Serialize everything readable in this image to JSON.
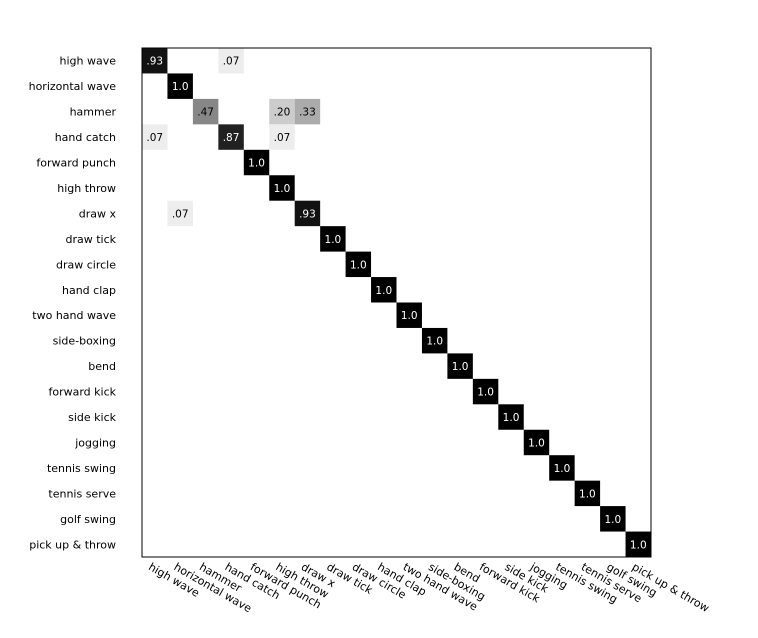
{
  "chart_data": {
    "type": "heatmap",
    "title": "",
    "xlabel": "",
    "ylabel": "",
    "colormap": "gray_r",
    "labels": [
      "high wave",
      "horizontal wave",
      "hammer",
      "hand catch",
      "forward punch",
      "high throw",
      "draw x",
      "draw tick",
      "draw circle",
      "hand clap",
      "two hand wave",
      "side-boxing",
      "bend",
      "forward kick",
      "side kick",
      "jogging",
      "tennis swing",
      "tennis serve",
      "golf swing",
      "pick up & throw"
    ],
    "cells": [
      {
        "row": 0,
        "col": 0,
        "value": 0.93,
        "label": ".93"
      },
      {
        "row": 0,
        "col": 3,
        "value": 0.07,
        "label": ".07"
      },
      {
        "row": 1,
        "col": 1,
        "value": 1.0,
        "label": "1.0"
      },
      {
        "row": 2,
        "col": 2,
        "value": 0.47,
        "label": ".47"
      },
      {
        "row": 2,
        "col": 5,
        "value": 0.2,
        "label": ".20"
      },
      {
        "row": 2,
        "col": 6,
        "value": 0.33,
        "label": ".33"
      },
      {
        "row": 3,
        "col": 0,
        "value": 0.07,
        "label": ".07"
      },
      {
        "row": 3,
        "col": 3,
        "value": 0.87,
        "label": ".87"
      },
      {
        "row": 3,
        "col": 5,
        "value": 0.07,
        "label": ".07"
      },
      {
        "row": 4,
        "col": 4,
        "value": 1.0,
        "label": "1.0"
      },
      {
        "row": 5,
        "col": 5,
        "value": 1.0,
        "label": "1.0"
      },
      {
        "row": 6,
        "col": 1,
        "value": 0.07,
        "label": ".07"
      },
      {
        "row": 6,
        "col": 6,
        "value": 0.93,
        "label": ".93"
      },
      {
        "row": 7,
        "col": 7,
        "value": 1.0,
        "label": "1.0"
      },
      {
        "row": 8,
        "col": 8,
        "value": 1.0,
        "label": "1.0"
      },
      {
        "row": 9,
        "col": 9,
        "value": 1.0,
        "label": "1.0"
      },
      {
        "row": 10,
        "col": 10,
        "value": 1.0,
        "label": "1.0"
      },
      {
        "row": 11,
        "col": 11,
        "value": 1.0,
        "label": "1.0"
      },
      {
        "row": 12,
        "col": 12,
        "value": 1.0,
        "label": "1.0"
      },
      {
        "row": 13,
        "col": 13,
        "value": 1.0,
        "label": "1.0"
      },
      {
        "row": 14,
        "col": 14,
        "value": 1.0,
        "label": "1.0"
      },
      {
        "row": 15,
        "col": 15,
        "value": 1.0,
        "label": "1.0"
      },
      {
        "row": 16,
        "col": 16,
        "value": 1.0,
        "label": "1.0"
      },
      {
        "row": 17,
        "col": 17,
        "value": 1.0,
        "label": "1.0"
      },
      {
        "row": 18,
        "col": 18,
        "value": 1.0,
        "label": "1.0"
      },
      {
        "row": 19,
        "col": 19,
        "value": 1.0,
        "label": "1.0"
      }
    ],
    "grid": false,
    "legend": "none"
  }
}
